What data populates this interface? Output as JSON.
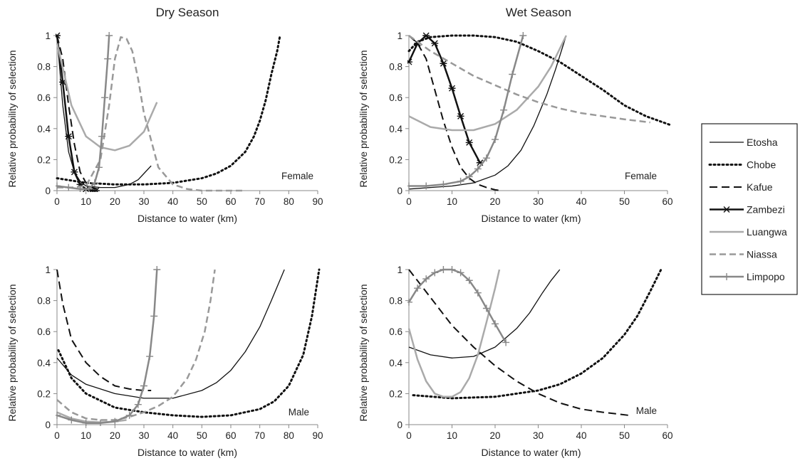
{
  "columns": [
    "Dry Season",
    "Wet Season"
  ],
  "legend": {
    "items": [
      {
        "label": "Etosha",
        "color": "#111111",
        "style": "solid",
        "width": 1.3,
        "marker": "none"
      },
      {
        "label": "Chobe",
        "color": "#111111",
        "style": "dotted",
        "width": 3,
        "marker": "none"
      },
      {
        "label": "Kafue",
        "color": "#111111",
        "style": "dashed",
        "width": 2,
        "marker": "none"
      },
      {
        "label": "Zambezi",
        "color": "#111111",
        "style": "solid",
        "width": 2.5,
        "marker": "star"
      },
      {
        "label": "Luangwa",
        "color": "#aaaaaa",
        "style": "solid",
        "width": 2.5,
        "marker": "none"
      },
      {
        "label": "Niassa",
        "color": "#999999",
        "style": "dashed",
        "width": 2.5,
        "marker": "none"
      },
      {
        "label": "Limpopo",
        "color": "#888888",
        "style": "solid",
        "width": 2.5,
        "marker": "plus"
      }
    ]
  },
  "chart_data": [
    {
      "type": "line",
      "title": "Dry Season",
      "panel_label": "Female",
      "xlabel": "Distance to water (km)",
      "ylabel": "Relative probability of selection",
      "xlim": [
        0,
        90
      ],
      "ylim": [
        0,
        1
      ],
      "xticks": [
        0,
        10,
        20,
        30,
        40,
        50,
        60,
        70,
        80,
        90
      ],
      "yticks": [
        0,
        0.2,
        0.4,
        0.6,
        0.8,
        1
      ],
      "ytick_labels": [
        "0",
        "0.2",
        "0.4",
        "0.6",
        "0.8",
        "1"
      ],
      "series": [
        {
          "name": "Etosha",
          "x": [
            0,
            2,
            4,
            6,
            8,
            10,
            15,
            20,
            25,
            28,
            30,
            32.5
          ],
          "y": [
            1,
            0.55,
            0.25,
            0.12,
            0.06,
            0.03,
            0.02,
            0.02,
            0.04,
            0.07,
            0.11,
            0.16
          ]
        },
        {
          "name": "Chobe",
          "x": [
            0,
            10,
            20,
            30,
            40,
            50,
            55,
            60,
            65,
            68,
            70,
            72,
            74,
            76,
            77
          ],
          "y": [
            0.08,
            0.05,
            0.04,
            0.04,
            0.05,
            0.08,
            0.11,
            0.16,
            0.25,
            0.35,
            0.45,
            0.58,
            0.75,
            0.9,
            1
          ]
        },
        {
          "name": "Kafue",
          "x": [
            0,
            2,
            4,
            6,
            8,
            10,
            12,
            14
          ],
          "y": [
            1,
            0.85,
            0.55,
            0.3,
            0.12,
            0.05,
            0.02,
            0.01
          ]
        },
        {
          "name": "Zambezi",
          "x": [
            0,
            2,
            4,
            6,
            8,
            10,
            12,
            13.5
          ],
          "y": [
            1,
            0.7,
            0.35,
            0.12,
            0.04,
            0.01,
            0.0,
            0.0
          ]
        },
        {
          "name": "Luangwa",
          "x": [
            0,
            5,
            10,
            15,
            20,
            25,
            30,
            34.5
          ],
          "y": [
            0.95,
            0.55,
            0.35,
            0.28,
            0.26,
            0.29,
            0.38,
            0.57
          ]
        },
        {
          "name": "Niassa",
          "x": [
            0,
            5,
            10,
            15,
            18,
            20,
            22,
            24,
            26,
            28,
            30,
            35,
            40,
            45,
            50,
            55,
            60,
            65
          ],
          "y": [
            0.02,
            0.02,
            0.03,
            0.2,
            0.55,
            0.85,
            0.99,
            0.98,
            0.9,
            0.72,
            0.5,
            0.15,
            0.04,
            0.01,
            0,
            0,
            0,
            0
          ]
        },
        {
          "name": "Limpopo",
          "x": [
            0,
            4,
            8,
            11,
            13,
            14.5,
            15.5,
            16.5,
            17.5,
            18
          ],
          "y": [
            0.03,
            0.02,
            0.01,
            0.01,
            0.05,
            0.15,
            0.35,
            0.6,
            0.85,
            1
          ]
        }
      ]
    },
    {
      "type": "line",
      "title": "Wet Season",
      "panel_label": "Female",
      "xlabel": "Distance to water (km)",
      "ylabel": "Relative probability of selection",
      "xlim": [
        0,
        60
      ],
      "ylim": [
        0,
        1
      ],
      "xticks": [
        0,
        10,
        20,
        30,
        40,
        50,
        60
      ],
      "yticks": [
        0,
        0.2,
        0.4,
        0.6,
        0.8,
        1
      ],
      "ytick_labels": [
        "0",
        "0.2",
        "0.4",
        "0.6",
        "0.8",
        "1"
      ],
      "series": [
        {
          "name": "Etosha",
          "x": [
            0,
            5,
            10,
            15,
            20,
            23,
            26,
            29,
            32,
            34,
            36.5
          ],
          "y": [
            0.01,
            0.02,
            0.03,
            0.05,
            0.1,
            0.16,
            0.26,
            0.42,
            0.62,
            0.78,
            1
          ]
        },
        {
          "name": "Chobe",
          "x": [
            0,
            2,
            5,
            10,
            15,
            20,
            25,
            30,
            35,
            40,
            45,
            50,
            55,
            61
          ],
          "y": [
            0.9,
            0.96,
            0.99,
            1,
            1,
            0.99,
            0.96,
            0.9,
            0.83,
            0.74,
            0.65,
            0.55,
            0.48,
            0.42
          ]
        },
        {
          "name": "Kafue",
          "x": [
            0,
            2,
            4,
            6,
            8,
            10,
            12,
            14,
            16,
            18,
            20,
            21.5
          ],
          "y": [
            1,
            0.95,
            0.85,
            0.65,
            0.45,
            0.28,
            0.15,
            0.08,
            0.04,
            0.02,
            0.005,
            0
          ]
        },
        {
          "name": "Zambezi",
          "x": [
            0,
            2,
            4,
            6,
            8,
            10,
            12,
            14,
            16.5
          ],
          "y": [
            0.83,
            0.95,
            1,
            0.95,
            0.82,
            0.66,
            0.48,
            0.31,
            0.18
          ]
        },
        {
          "name": "Luangwa",
          "x": [
            0,
            5,
            10,
            15,
            20,
            25,
            30,
            33,
            36.5
          ],
          "y": [
            0.48,
            0.41,
            0.39,
            0.39,
            0.43,
            0.52,
            0.67,
            0.8,
            1
          ]
        },
        {
          "name": "Niassa",
          "x": [
            0,
            5,
            10,
            15,
            20,
            25,
            30,
            35,
            40,
            45,
            50,
            56
          ],
          "y": [
            1,
            0.9,
            0.82,
            0.74,
            0.68,
            0.62,
            0.57,
            0.53,
            0.5,
            0.48,
            0.46,
            0.44
          ]
        },
        {
          "name": "Limpopo",
          "x": [
            0,
            4,
            8,
            12,
            14,
            16,
            18,
            20,
            22,
            24,
            26.5
          ],
          "y": [
            0.03,
            0.03,
            0.04,
            0.06,
            0.09,
            0.14,
            0.21,
            0.33,
            0.52,
            0.75,
            1
          ]
        }
      ]
    },
    {
      "type": "line",
      "title": "",
      "panel_label": "Male",
      "xlabel": "Distance to water (km)",
      "ylabel": "Relative probability of selection",
      "xlim": [
        0,
        90
      ],
      "ylim": [
        0,
        1
      ],
      "xticks": [
        0,
        10,
        20,
        30,
        40,
        50,
        60,
        70,
        80,
        90
      ],
      "yticks": [
        0,
        0.2,
        0.4,
        0.6,
        0.8,
        1
      ],
      "ytick_labels": [
        "0",
        "0.2",
        "0.4",
        "0.6",
        "0.8",
        "1"
      ],
      "series": [
        {
          "name": "Etosha",
          "x": [
            0,
            5,
            10,
            20,
            30,
            40,
            50,
            55,
            60,
            65,
            70,
            74,
            78.5
          ],
          "y": [
            0.43,
            0.32,
            0.26,
            0.2,
            0.17,
            0.17,
            0.22,
            0.27,
            0.35,
            0.47,
            0.63,
            0.8,
            1
          ]
        },
        {
          "name": "Chobe",
          "x": [
            0.5,
            5,
            10,
            20,
            30,
            40,
            50,
            60,
            70,
            75,
            80,
            85,
            88,
            90.5
          ],
          "y": [
            0.48,
            0.3,
            0.2,
            0.11,
            0.08,
            0.06,
            0.05,
            0.06,
            0.1,
            0.15,
            0.25,
            0.45,
            0.7,
            1
          ]
        },
        {
          "name": "Kafue",
          "x": [
            0,
            2,
            5,
            10,
            15,
            20,
            25,
            30,
            32.5
          ],
          "y": [
            1,
            0.78,
            0.55,
            0.4,
            0.31,
            0.25,
            0.23,
            0.22,
            0.22
          ]
        },
        {
          "name": "Luangwa",
          "x": [
            0,
            5,
            10,
            15,
            20,
            24
          ],
          "y": [
            0.08,
            0.04,
            0.02,
            0.015,
            0.02,
            0.03
          ]
        },
        {
          "name": "Niassa",
          "x": [
            0,
            5,
            10,
            15,
            20,
            25,
            30,
            35,
            40,
            45,
            48,
            51,
            53,
            54.5
          ],
          "y": [
            0.16,
            0.08,
            0.04,
            0.03,
            0.03,
            0.05,
            0.08,
            0.12,
            0.18,
            0.3,
            0.42,
            0.6,
            0.8,
            1
          ]
        },
        {
          "name": "Limpopo",
          "x": [
            0,
            5,
            10,
            15,
            20,
            25,
            28,
            30,
            32,
            33.5,
            34.5
          ],
          "y": [
            0.06,
            0.03,
            0.01,
            0.01,
            0.02,
            0.06,
            0.13,
            0.25,
            0.44,
            0.7,
            1
          ]
        }
      ]
    },
    {
      "type": "line",
      "title": "",
      "panel_label": "Male",
      "xlabel": "Distance to water (km)",
      "ylabel": "Relative probability of selection",
      "xlim": [
        0,
        60
      ],
      "ylim": [
        0,
        1
      ],
      "xticks": [
        0,
        10,
        20,
        30,
        40,
        50,
        60
      ],
      "yticks": [
        0,
        0.2,
        0.4,
        0.6,
        0.8,
        1
      ],
      "ytick_labels": [
        "0",
        "0.2",
        "0.4",
        "0.6",
        "0.8",
        "1"
      ],
      "series": [
        {
          "name": "Etosha",
          "x": [
            0,
            5,
            10,
            15,
            20,
            25,
            28,
            31,
            33,
            35
          ],
          "y": [
            0.5,
            0.45,
            0.43,
            0.44,
            0.5,
            0.62,
            0.72,
            0.85,
            0.93,
            1
          ]
        },
        {
          "name": "Chobe",
          "x": [
            1,
            10,
            20,
            30,
            35,
            40,
            45,
            50,
            53,
            56,
            58.5
          ],
          "y": [
            0.19,
            0.17,
            0.18,
            0.22,
            0.26,
            0.33,
            0.43,
            0.58,
            0.7,
            0.86,
            1
          ]
        },
        {
          "name": "Kafue",
          "x": [
            0,
            5,
            10,
            15,
            20,
            25,
            30,
            35,
            40,
            45,
            51
          ],
          "y": [
            1,
            0.82,
            0.64,
            0.5,
            0.38,
            0.28,
            0.2,
            0.14,
            0.1,
            0.08,
            0.06
          ]
        },
        {
          "name": "Luangwa",
          "x": [
            0,
            2,
            4,
            6,
            8,
            10,
            12,
            14,
            16,
            18,
            20,
            21
          ],
          "y": [
            0.62,
            0.42,
            0.28,
            0.2,
            0.18,
            0.18,
            0.21,
            0.3,
            0.45,
            0.66,
            0.88,
            1
          ]
        },
        {
          "name": "Limpopo",
          "x": [
            0,
            2,
            4,
            6,
            8,
            10,
            12,
            14,
            16,
            18,
            20,
            22.5
          ],
          "y": [
            0.79,
            0.88,
            0.94,
            0.98,
            1,
            1,
            0.98,
            0.93,
            0.85,
            0.75,
            0.65,
            0.53
          ]
        }
      ]
    }
  ]
}
